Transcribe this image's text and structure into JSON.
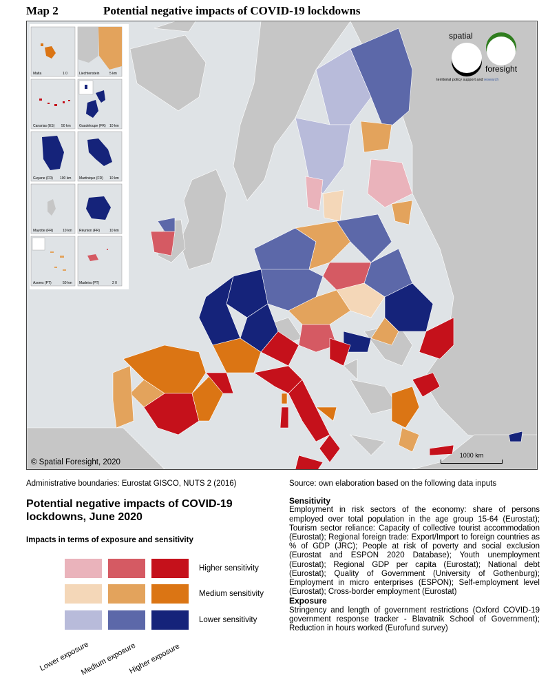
{
  "map_number": "Map 2",
  "map_title": "Potential negative impacts of COVID-19 lockdowns",
  "copyright": "© Spatial Foresight, 2020",
  "scalebar_label": "1000 km",
  "logo": {
    "word_top": "spatial",
    "word_bottom": "foresight",
    "tagline_a": "territorial policy support and ",
    "tagline_b": "research"
  },
  "insets": [
    {
      "name": "Malta",
      "scale": "1 0"
    },
    {
      "name": "Liechtenstein",
      "scale": "5 km"
    },
    {
      "name": "Canarias (ES)",
      "scale": "50 km"
    },
    {
      "name": "Guadeloupe (FR)",
      "scale": "10 km"
    },
    {
      "name": "Guyane (FR)",
      "scale": "100 km"
    },
    {
      "name": "Martinique (FR)",
      "scale": "10 km"
    },
    {
      "name": "Mayotte (FR)",
      "scale": "10 km"
    },
    {
      "name": "Réunion (FR)",
      "scale": "10 km"
    },
    {
      "name": "Azores (PT)",
      "scale": "50 km"
    },
    {
      "name": "Madeira (PT)",
      "scale": "2 0"
    }
  ],
  "admin_boundaries": "Administrative boundaries: Eurostat GISCO, NUTS 2 (2016)",
  "legend": {
    "title": "Potential negative impacts of COVID-19 lockdowns, June 2020",
    "subtitle": "Impacts in terms of exposure and sensitivity",
    "rows": [
      "Higher sensitivity",
      "Medium sensitivity",
      "Lower sensitivity"
    ],
    "cols": [
      "Lower exposure",
      "Medium exposure",
      "Higher exposure"
    ],
    "colors": [
      [
        "#eab3bb",
        "#d55a63",
        "#c5111b"
      ],
      [
        "#f4d7b8",
        "#e3a35c",
        "#db7514"
      ],
      [
        "#b8bbda",
        "#5c68a9",
        "#15237a"
      ]
    ]
  },
  "source": {
    "intro": "Source: own elaboration based on the following data inputs",
    "sensitivity_heading": "Sensitivity",
    "sensitivity_text": "Employment in risk sectors of the economy: share of persons employed over total population in the age group 15-64 (Eurostat); Tourism sector reliance: Capacity of collective tourist accommodation (Eurostat); Regional foreign trade: Export/Import to foreign countries as % of GDP (JRC); People at risk of poverty and social exclusion (Eurostat and ESPON 2020 Database); Youth unemployment (Eurostat); Regional GDP per capita (Eurostat); National debt (Eurostat); Quality of Government (University of Gothenburg); Employment in micro enterprises (ESPON); Self-employment level (Eurostat); Cross-border employment (Eurostat)",
    "exposure_heading": "Exposure",
    "exposure_text": "Stringency and length of government restrictions (Oxford COVID-19 government response tracker - Blavatnik School of Government); Reduction in hours worked (Eurofund survey)"
  }
}
